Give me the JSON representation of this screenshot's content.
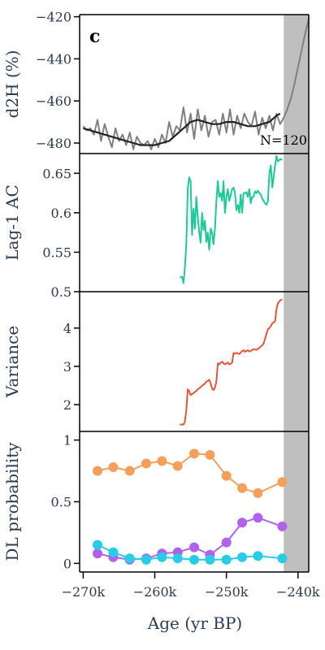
{
  "panel_label": "c",
  "colors": {
    "shade": "#bfbfbf",
    "raw": "#808080",
    "smooth": "#222222",
    "ac": "#1ec99a",
    "variance": "#e4553a",
    "dl_orange": "#f5a05a",
    "dl_purple": "#b062ec",
    "dl_cyan": "#27cce6",
    "axis": "#2b3a55"
  },
  "x_axis": {
    "label": "Age (yr BP)",
    "ticks": [
      -270000,
      -260000,
      -250000,
      -240000
    ],
    "tick_labels": [
      "−270k",
      "−260k",
      "−250k",
      "−240k"
    ],
    "range": [
      -270500,
      -238500
    ],
    "shaded_from": -242000
  },
  "chart_data": [
    {
      "type": "line",
      "ylabel": "d2H (%)",
      "ylim": [
        -485,
        -419
      ],
      "yticks": [
        -420,
        -440,
        -460,
        -480
      ],
      "ytick_labels": [
        "−420",
        "−440",
        "−460",
        "−480"
      ],
      "annotation": "N=120",
      "series": [
        {
          "color_key": "raw",
          "x": [
            -270000,
            -269500,
            -269000,
            -268500,
            -268000,
            -267500,
            -267000,
            -266500,
            -266000,
            -265500,
            -265000,
            -264500,
            -264000,
            -263500,
            -263000,
            -262500,
            -262000,
            -261500,
            -261000,
            -260500,
            -260000,
            -259500,
            -259000,
            -258500,
            -258000,
            -257500,
            -257000,
            -256500,
            -256000,
            -255500,
            -255000,
            -254500,
            -254000,
            -253500,
            -253000,
            -252500,
            -252000,
            -251500,
            -251000,
            -250500,
            -250000,
            -249500,
            -249000,
            -248500,
            -248000,
            -247500,
            -247000,
            -246500,
            -246000,
            -245500,
            -245000,
            -244500,
            -244000,
            -243500,
            -243000,
            -242500,
            -242000,
            -241500,
            -241000,
            -240500,
            -240000,
            -239500,
            -239000,
            -238500
          ],
          "values": [
            -472,
            -474,
            -473,
            -476,
            -469,
            -479,
            -471,
            -477,
            -482,
            -473,
            -479,
            -476,
            -481,
            -475,
            -483,
            -477,
            -480,
            -481,
            -479,
            -483,
            -478,
            -482,
            -476,
            -480,
            -470,
            -477,
            -472,
            -474,
            -463,
            -475,
            -466,
            -478,
            -464,
            -474,
            -467,
            -477,
            -470,
            -469,
            -476,
            -466,
            -475,
            -464,
            -476,
            -467,
            -473,
            -466,
            -470,
            -472,
            -465,
            -476,
            -468,
            -473,
            -467,
            -474,
            -466,
            -471,
            -468,
            -464,
            -459,
            -452,
            -444,
            -436,
            -428,
            -421
          ]
        },
        {
          "color_key": "smooth",
          "x": [
            -270000,
            -269000,
            -268000,
            -267000,
            -266000,
            -265000,
            -264000,
            -263000,
            -262000,
            -261000,
            -260000,
            -259000,
            -258000,
            -257000,
            -256000,
            -255000,
            -254000,
            -253000,
            -252000,
            -251000,
            -250000,
            -249000,
            -248000,
            -247000,
            -246000,
            -245000,
            -244000,
            -243000,
            -242500
          ],
          "values": [
            -473,
            -474,
            -475,
            -476,
            -477,
            -478,
            -479,
            -480,
            -481,
            -481,
            -481,
            -480,
            -479,
            -476,
            -473,
            -470,
            -469,
            -470,
            -471,
            -471,
            -470,
            -470,
            -471,
            -472,
            -472,
            -471,
            -470,
            -467,
            -466
          ]
        }
      ]
    },
    {
      "type": "line",
      "ylabel": "Lag-1 AC",
      "ylim": [
        0.5,
        0.675
      ],
      "yticks": [
        0.5,
        0.55,
        0.6,
        0.65
      ],
      "ytick_labels": [
        "0.5",
        "0.55",
        "0.6",
        "0.65"
      ],
      "series": [
        {
          "color_key": "ac",
          "x": [
            -256500,
            -256200,
            -256000,
            -255800,
            -255600,
            -255400,
            -255200,
            -255000,
            -254800,
            -254600,
            -254400,
            -254200,
            -254000,
            -253800,
            -253600,
            -253400,
            -253200,
            -253000,
            -252800,
            -252600,
            -252400,
            -252200,
            -252000,
            -251800,
            -251600,
            -251400,
            -251200,
            -251000,
            -250800,
            -250600,
            -250400,
            -250200,
            -250000,
            -249800,
            -249600,
            -249400,
            -249200,
            -249000,
            -248800,
            -248600,
            -248400,
            -248200,
            -248000,
            -247800,
            -247600,
            -247400,
            -247200,
            -247000,
            -246800,
            -246600,
            -246400,
            -246200,
            -246000,
            -245800,
            -245600,
            -245400,
            -245200,
            -245000,
            -244800,
            -244600,
            -244400,
            -244200,
            -244000,
            -243800,
            -243600,
            -243400,
            -243200,
            -243000,
            -242800,
            -242500,
            -242200
          ],
          "values": [
            0.518,
            0.519,
            0.511,
            0.53,
            0.56,
            0.63,
            0.645,
            0.64,
            0.572,
            0.605,
            0.58,
            0.62,
            0.595,
            0.575,
            0.562,
            0.6,
            0.578,
            0.59,
            0.563,
            0.575,
            0.553,
            0.58,
            0.575,
            0.56,
            0.58,
            0.615,
            0.64,
            0.62,
            0.625,
            0.615,
            0.64,
            0.6,
            0.62,
            0.63,
            0.615,
            0.622,
            0.63,
            0.632,
            0.625,
            0.603,
            0.61,
            0.6,
            0.623,
            0.6,
            0.625,
            0.625,
            0.626,
            0.62,
            0.63,
            0.612,
            0.62,
            0.62,
            0.627,
            0.625,
            0.628,
            0.625,
            0.623,
            0.618,
            0.615,
            0.612,
            0.61,
            0.615,
            0.65,
            0.66,
            0.632,
            0.645,
            0.66,
            0.672,
            0.665,
            0.668,
            0.667
          ]
        }
      ]
    },
    {
      "type": "line",
      "ylabel": "Variance",
      "ylim": [
        1.3,
        4.95
      ],
      "yticks": [
        2,
        3,
        4
      ],
      "ytick_labels": [
        "2",
        "3",
        "4"
      ],
      "series": [
        {
          "color_key": "variance",
          "x": [
            -256500,
            -256200,
            -256000,
            -255800,
            -255600,
            -255400,
            -255200,
            -255000,
            -254800,
            -254600,
            -254400,
            -254200,
            -254000,
            -253800,
            -253600,
            -253400,
            -253200,
            -253000,
            -252800,
            -252600,
            -252400,
            -252200,
            -252000,
            -251800,
            -251600,
            -251400,
            -251200,
            -251000,
            -250800,
            -250600,
            -250400,
            -250200,
            -250000,
            -249800,
            -249600,
            -249400,
            -249200,
            -249000,
            -248800,
            -248600,
            -248400,
            -248200,
            -248000,
            -247800,
            -247600,
            -247400,
            -247200,
            -247000,
            -246800,
            -246600,
            -246400,
            -246200,
            -246000,
            -245800,
            -245600,
            -245400,
            -245200,
            -245000,
            -244800,
            -244600,
            -244400,
            -244200,
            -244000,
            -243800,
            -243600,
            -243400,
            -243200,
            -243000,
            -242800,
            -242500,
            -242200
          ],
          "values": [
            1.48,
            1.48,
            1.48,
            1.55,
            1.85,
            2.4,
            2.35,
            2.25,
            2.28,
            2.3,
            2.33,
            2.36,
            2.4,
            2.43,
            2.45,
            2.5,
            2.52,
            2.55,
            2.6,
            2.62,
            2.65,
            2.55,
            2.42,
            2.38,
            2.45,
            2.6,
            3.08,
            3.05,
            3.1,
            3.12,
            3.08,
            3.05,
            3.08,
            3.1,
            3.05,
            3.07,
            3.1,
            3.35,
            3.33,
            3.35,
            3.34,
            3.32,
            3.36,
            3.4,
            3.42,
            3.38,
            3.4,
            3.42,
            3.39,
            3.4,
            3.43,
            3.45,
            3.44,
            3.43,
            3.46,
            3.48,
            3.52,
            3.55,
            3.6,
            3.72,
            3.85,
            3.97,
            4.0,
            4.05,
            4.12,
            4.15,
            4.18,
            4.5,
            4.65,
            4.72,
            4.75
          ]
        }
      ]
    },
    {
      "type": "line",
      "ylabel": "DL probability",
      "ylim": [
        -0.07,
        1.07
      ],
      "yticks": [
        0,
        0.5,
        1
      ],
      "ytick_labels": [
        "0",
        "0.5",
        "1"
      ],
      "x": [
        -268000,
        -265800,
        -263500,
        -261200,
        -259000,
        -256800,
        -254500,
        -252300,
        -250000,
        -247800,
        -245600,
        -243300,
        -242200
      ],
      "series": [
        {
          "color_key": "dl_orange",
          "x": [
            -268000,
            -265800,
            -263500,
            -261200,
            -259000,
            -256800,
            -254500,
            -252300,
            -250000,
            -247800,
            -245600,
            -242200
          ],
          "values": [
            0.75,
            0.78,
            0.75,
            0.81,
            0.83,
            0.79,
            0.89,
            0.88,
            0.71,
            0.61,
            0.57,
            0.66
          ]
        },
        {
          "color_key": "dl_purple",
          "x": [
            -268000,
            -265800,
            -263500,
            -261200,
            -259000,
            -256800,
            -254500,
            -252300,
            -250000,
            -247800,
            -245600,
            -242200
          ],
          "values": [
            0.08,
            0.05,
            0.03,
            0.04,
            0.08,
            0.09,
            0.13,
            0.07,
            0.17,
            0.33,
            0.37,
            0.3
          ]
        },
        {
          "color_key": "dl_cyan",
          "x": [
            -268000,
            -265800,
            -263500,
            -261200,
            -259000,
            -256800,
            -254500,
            -252300,
            -250000,
            -247800,
            -245600,
            -242200
          ],
          "values": [
            0.15,
            0.09,
            0.04,
            0.03,
            0.05,
            0.04,
            0.03,
            0.03,
            0.03,
            0.05,
            0.06,
            0.04
          ]
        }
      ]
    }
  ]
}
